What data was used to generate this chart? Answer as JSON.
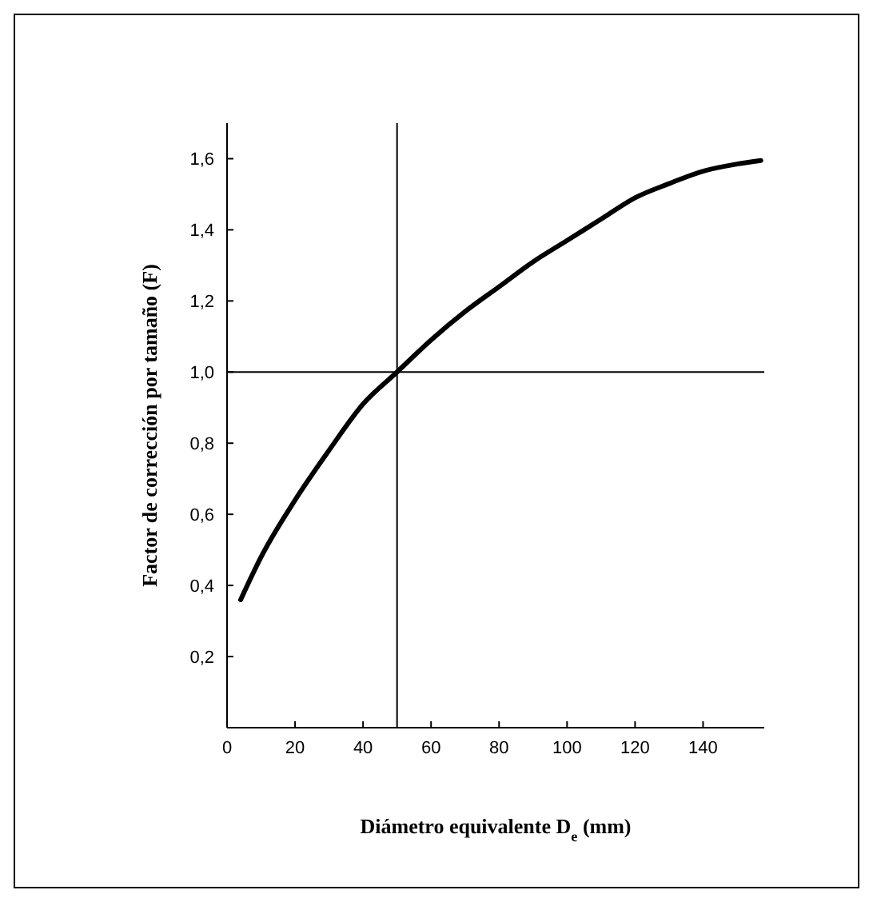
{
  "chart_data": {
    "type": "line",
    "xlabel": "Diámetro equivalente D$_{e}$ (mm)",
    "ylabel": "Factor de corrección por tamaño (F)",
    "x": [
      4,
      10,
      20,
      30,
      40,
      50,
      60,
      70,
      80,
      90,
      100,
      110,
      120,
      130,
      140,
      150,
      157
    ],
    "series": [
      {
        "color": "#000000",
        "values": [
          0.36,
          0.48,
          0.64,
          0.78,
          0.91,
          1.0,
          1.09,
          1.17,
          1.24,
          1.31,
          1.37,
          1.43,
          1.49,
          1.53,
          1.565,
          1.585,
          1.595
        ]
      }
    ],
    "xlim": [
      0,
      158
    ],
    "ylim": [
      0,
      1.7
    ],
    "xticks": [
      0,
      20,
      40,
      60,
      80,
      100,
      120,
      140
    ],
    "yticks": [
      {
        "value": 0.2,
        "label": "0,2"
      },
      {
        "value": 0.4,
        "label": "0,4"
      },
      {
        "value": 0.6,
        "label": "0,6"
      },
      {
        "value": 0.8,
        "label": "0,8"
      },
      {
        "value": 1.0,
        "label": "1,0"
      },
      {
        "value": 1.2,
        "label": "1,2"
      },
      {
        "value": 1.4,
        "label": "1,4"
      },
      {
        "value": 1.6,
        "label": "1,6"
      }
    ],
    "ref_lines": [
      {
        "axis": "x",
        "value": 50
      },
      {
        "axis": "y",
        "value": 1.0
      }
    ],
    "marker": "none",
    "line_style": "solid"
  }
}
